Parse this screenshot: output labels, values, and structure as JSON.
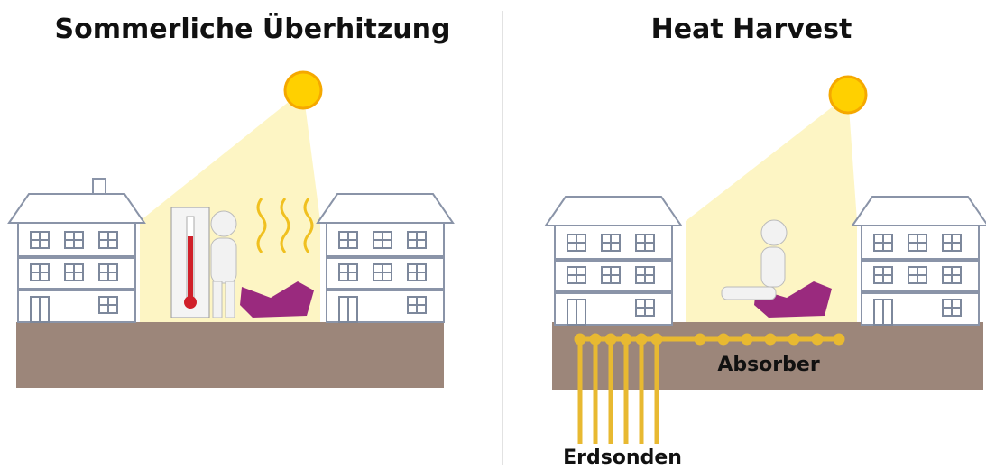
{
  "panels": [
    {
      "title": "Sommerliche Überhitzung"
    },
    {
      "title": "Heat Harvest",
      "labels": {
        "absorber": "Absorber",
        "probes": "Erdsonden"
      }
    }
  ]
}
